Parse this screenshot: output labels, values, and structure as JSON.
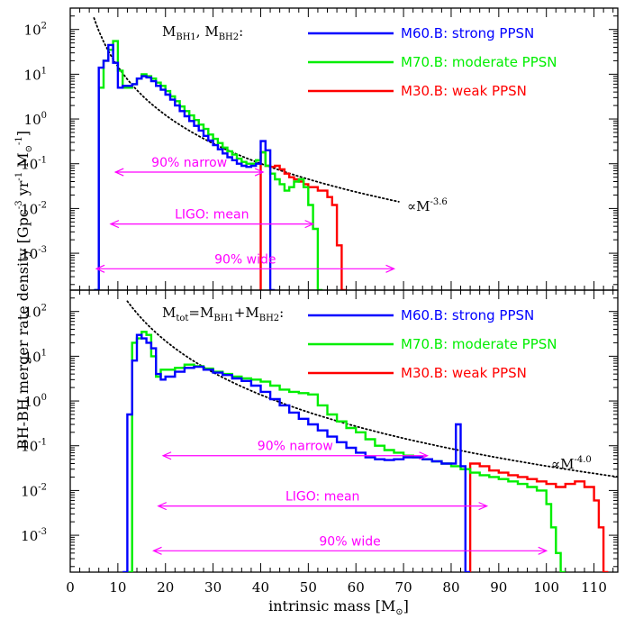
{
  "x_axis_label_main": "intrinsic mass [M",
  "x_axis_label_sub": "⊙",
  "x_axis_label_end": "]",
  "y_axis_label_main": "BH-BH merger rate density [Gpc",
  "y_axis_label_sup1": "-3",
  "y_axis_label_mid": " yr",
  "y_axis_label_sup2": "-1",
  "y_axis_label_m": " M",
  "y_axis_label_sub": "⊙",
  "y_axis_label_sup3": "-1",
  "y_axis_label_end": "]",
  "chart_data": [
    {
      "type": "line",
      "panel": "top",
      "panel_label": {
        "parts": [
          [
            "M",
            ""
          ],
          [
            "BH1",
            "sub"
          ],
          [
            ",  M",
            ""
          ],
          [
            "BH2",
            "sub"
          ],
          [
            ":",
            ""
          ]
        ]
      },
      "xlim": [
        0,
        115
      ],
      "ylim": [
        0.00015,
        300
      ],
      "yscale": "log",
      "x_ticks": [
        0,
        10,
        20,
        30,
        40,
        50,
        60,
        70,
        80,
        90,
        100,
        110
      ],
      "y_ticks": [
        {
          "value": 100,
          "base": "10",
          "exp": "2"
        },
        {
          "value": 10,
          "base": "10",
          "exp": "1"
        },
        {
          "value": 1,
          "base": "10",
          "exp": "0"
        },
        {
          "value": 0.1,
          "base": "10",
          "exp": "-1"
        },
        {
          "value": 0.01,
          "base": "10",
          "exp": "-2"
        },
        {
          "value": 0.001,
          "base": "10",
          "exp": "-3"
        }
      ],
      "series": [
        {
          "name": "M60.B: strong PPSN",
          "color": "#0000ff",
          "type": "step",
          "x": [
            5,
            6,
            7,
            8,
            9,
            10,
            11,
            12,
            13,
            14,
            15,
            16,
            17,
            18,
            19,
            20,
            21,
            22,
            23,
            24,
            25,
            26,
            27,
            28,
            29,
            30,
            31,
            32,
            33,
            34,
            35,
            36,
            37,
            38,
            39,
            40,
            41,
            42,
            43
          ],
          "y": [
            0.00015,
            14,
            20,
            45,
            18,
            5,
            5.5,
            5.5,
            6,
            8,
            9,
            8.5,
            7,
            5.5,
            4.5,
            3.5,
            2.7,
            2.0,
            1.5,
            1.15,
            0.9,
            0.7,
            0.55,
            0.42,
            0.33,
            0.26,
            0.21,
            0.17,
            0.14,
            0.12,
            0.1,
            0.09,
            0.085,
            0.09,
            0.1,
            0.32,
            0.2,
            0.00015,
            0.00015
          ]
        },
        {
          "name": "M70.B: moderate PPSN",
          "color": "#00ee00",
          "type": "step",
          "x": [
            5,
            6,
            7,
            8,
            9,
            10,
            11,
            12,
            13,
            14,
            15,
            16,
            17,
            18,
            19,
            20,
            21,
            22,
            23,
            24,
            25,
            26,
            27,
            28,
            29,
            30,
            31,
            32,
            33,
            34,
            35,
            36,
            37,
            38,
            39,
            40,
            41,
            42,
            43,
            44,
            45,
            46,
            47,
            48,
            49,
            50,
            51,
            52,
            53
          ],
          "y": [
            0.00015,
            5,
            20,
            35,
            55,
            12,
            5,
            5,
            6,
            8,
            10,
            9,
            8,
            6.5,
            5.5,
            4.2,
            3.2,
            2.5,
            1.9,
            1.5,
            1.2,
            0.95,
            0.75,
            0.6,
            0.45,
            0.36,
            0.29,
            0.23,
            0.19,
            0.16,
            0.13,
            0.11,
            0.1,
            0.1,
            0.12,
            0.18,
            0.09,
            0.06,
            0.045,
            0.035,
            0.025,
            0.03,
            0.04,
            0.045,
            0.03,
            0.012,
            0.0035,
            0.00015,
            0.00015
          ]
        },
        {
          "name": "M30.B: weak PPSN",
          "color": "#ff0000",
          "type": "step",
          "x": [
            40,
            41,
            42,
            43,
            44,
            45,
            46,
            47,
            48,
            49,
            50,
            51,
            52,
            53,
            54,
            55,
            56,
            57,
            58
          ],
          "y": [
            0.18,
            0.09,
            0.085,
            0.09,
            0.075,
            0.06,
            0.05,
            0.045,
            0.04,
            0.035,
            0.03,
            0.03,
            0.025,
            0.025,
            0.018,
            0.012,
            0.0015,
            0.00015,
            0.00015
          ]
        }
      ],
      "fit": {
        "label_prefix": "∝M",
        "label_exp": "-3.6",
        "exponent": -3.6,
        "x_range": [
          5,
          69
        ],
        "anchor_x": 5,
        "anchor_y": 180
      },
      "arrows": [
        {
          "label": "90% narrow",
          "x_start": 9.5,
          "x_end": 40.5,
          "y": 0.065
        },
        {
          "label": "LIGO: mean",
          "x_start": 8.5,
          "x_end": 51,
          "y": 0.0045
        },
        {
          "label": "90% wide",
          "x_start": 5.5,
          "x_end": 68,
          "y": 0.00045
        }
      ]
    },
    {
      "type": "line",
      "panel": "bottom",
      "panel_label": {
        "parts": [
          [
            "M",
            ""
          ],
          [
            "tot",
            "sub"
          ],
          [
            "=M",
            ""
          ],
          [
            "BH1",
            "sub"
          ],
          [
            "+M",
            ""
          ],
          [
            "BH2",
            "sub"
          ],
          [
            ":",
            ""
          ]
        ]
      },
      "xlim": [
        0,
        115
      ],
      "ylim": [
        0.00015,
        300
      ],
      "yscale": "log",
      "x_ticks": [
        0,
        10,
        20,
        30,
        40,
        50,
        60,
        70,
        80,
        90,
        100,
        110
      ],
      "y_ticks": [
        {
          "value": 100,
          "base": "10",
          "exp": "2"
        },
        {
          "value": 10,
          "base": "10",
          "exp": "1"
        },
        {
          "value": 1,
          "base": "10",
          "exp": "0"
        },
        {
          "value": 0.1,
          "base": "10",
          "exp": "-1"
        },
        {
          "value": 0.01,
          "base": "10",
          "exp": "-2"
        },
        {
          "value": 0.001,
          "base": "10",
          "exp": "-3"
        }
      ],
      "series": [
        {
          "name": "M60.B: strong PPSN",
          "color": "#0000ff",
          "type": "step",
          "x": [
            11,
            12,
            13,
            14,
            15,
            16,
            17,
            18,
            19,
            20,
            22,
            24,
            26,
            28,
            30,
            32,
            34,
            36,
            38,
            40,
            42,
            44,
            46,
            48,
            50,
            52,
            54,
            56,
            58,
            60,
            62,
            64,
            66,
            68,
            70,
            72,
            74,
            76,
            78,
            80,
            81,
            82,
            83,
            84
          ],
          "y": [
            0.00015,
            0.5,
            8,
            30,
            25,
            20,
            15,
            4,
            3,
            3.5,
            4.5,
            5.5,
            5.8,
            5,
            4.3,
            3.8,
            3.2,
            2.8,
            2.2,
            1.6,
            1.1,
            0.8,
            0.55,
            0.4,
            0.3,
            0.22,
            0.16,
            0.12,
            0.09,
            0.07,
            0.055,
            0.05,
            0.048,
            0.05,
            0.055,
            0.055,
            0.05,
            0.045,
            0.04,
            0.04,
            0.3,
            0.035,
            0.00015,
            0.00015
          ]
        },
        {
          "name": "M70.B: moderate PPSN",
          "color": "#00ee00",
          "type": "step",
          "x": [
            12,
            13,
            14,
            15,
            16,
            17,
            18,
            19,
            20,
            22,
            24,
            26,
            28,
            30,
            32,
            34,
            36,
            38,
            40,
            42,
            44,
            46,
            48,
            50,
            52,
            54,
            56,
            58,
            60,
            62,
            64,
            66,
            68,
            70,
            72,
            74,
            76,
            78,
            80,
            82,
            84,
            86,
            88,
            90,
            92,
            94,
            96,
            98,
            100,
            101,
            102,
            103,
            104
          ],
          "y": [
            0.00015,
            20,
            25,
            35,
            30,
            10,
            3.5,
            5,
            5,
            5.5,
            6.5,
            6,
            5.3,
            4.5,
            4,
            3.5,
            3.2,
            3,
            2.7,
            2.2,
            1.8,
            1.6,
            1.5,
            1.4,
            0.8,
            0.5,
            0.35,
            0.25,
            0.2,
            0.14,
            0.1,
            0.08,
            0.07,
            0.06,
            0.055,
            0.05,
            0.045,
            0.04,
            0.035,
            0.03,
            0.025,
            0.022,
            0.02,
            0.018,
            0.016,
            0.014,
            0.012,
            0.01,
            0.005,
            0.0015,
            0.0004,
            0.00015,
            0.00015
          ]
        },
        {
          "name": "M30.B: weak PPSN",
          "color": "#ff0000",
          "type": "step",
          "x": [
            84,
            86,
            88,
            90,
            92,
            94,
            96,
            98,
            100,
            102,
            104,
            106,
            108,
            110,
            111,
            112,
            113
          ],
          "y": [
            0.04,
            0.035,
            0.028,
            0.025,
            0.022,
            0.02,
            0.018,
            0.016,
            0.014,
            0.012,
            0.014,
            0.016,
            0.012,
            0.006,
            0.0015,
            0.00015,
            0.00015
          ]
        }
      ],
      "fit": {
        "label_prefix": "∝M",
        "label_exp": "-4.0",
        "exponent": -4.0,
        "x_range": [
          12,
          115
        ],
        "anchor_x": 12,
        "anchor_y": 170
      },
      "arrows": [
        {
          "label": "90% narrow",
          "x_start": 19.5,
          "x_end": 75,
          "y": 0.06
        },
        {
          "label": "LIGO: mean",
          "x_start": 18.5,
          "x_end": 87.5,
          "y": 0.0045
        },
        {
          "label": "90% wide",
          "x_start": 17.5,
          "x_end": 100,
          "y": 0.00045
        }
      ]
    }
  ]
}
